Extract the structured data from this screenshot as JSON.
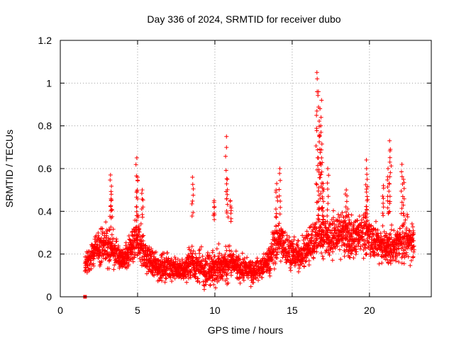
{
  "chart_data": {
    "type": "scatter",
    "title": "Day 336 of 2024, SRMTID for receiver dubo",
    "xlabel": "GPS time / hours",
    "ylabel": "SRMTID / TECUs",
    "xlim": [
      0,
      24
    ],
    "ylim": [
      0,
      1.2
    ],
    "x_ticks": [
      0,
      5,
      10,
      15,
      20
    ],
    "y_ticks": [
      0,
      0.2,
      0.4,
      0.6,
      0.8,
      1,
      1.2
    ],
    "x_tick_labels": [
      "0",
      "5",
      "10",
      "15",
      "20"
    ],
    "y_tick_labels": [
      "0",
      "0.2",
      "0.4",
      "0.6",
      "0.8",
      "1",
      "1.2"
    ],
    "grid": true,
    "marker": "plus",
    "color": "#ff0000",
    "series": [
      {
        "name": "SRMTID",
        "envelope_x": [
          1.6,
          2.0,
          2.5,
          3.0,
          3.5,
          4.0,
          4.5,
          5.0,
          5.5,
          6.0,
          6.5,
          7.0,
          7.5,
          8.0,
          8.5,
          9.0,
          9.5,
          10.0,
          10.5,
          11.0,
          11.5,
          12.0,
          12.5,
          13.0,
          13.5,
          14.0,
          14.5,
          15.0,
          15.5,
          16.0,
          16.5,
          17.0,
          17.5,
          18.0,
          18.5,
          19.0,
          19.5,
          20.0,
          20.5,
          21.0,
          21.5,
          22.0,
          22.5,
          22.9
        ],
        "envelope_low": [
          0.1,
          0.12,
          0.14,
          0.14,
          0.12,
          0.12,
          0.12,
          0.14,
          0.1,
          0.08,
          0.06,
          0.06,
          0.07,
          0.07,
          0.06,
          0.04,
          0.02,
          0.05,
          0.06,
          0.06,
          0.06,
          0.06,
          0.05,
          0.07,
          0.09,
          0.12,
          0.12,
          0.12,
          0.11,
          0.12,
          0.15,
          0.16,
          0.16,
          0.18,
          0.16,
          0.16,
          0.18,
          0.16,
          0.16,
          0.14,
          0.13,
          0.16,
          0.14,
          0.14
        ],
        "envelope_high": [
          0.2,
          0.26,
          0.32,
          0.35,
          0.3,
          0.22,
          0.3,
          0.4,
          0.28,
          0.22,
          0.2,
          0.22,
          0.18,
          0.17,
          0.26,
          0.22,
          0.2,
          0.24,
          0.22,
          0.26,
          0.2,
          0.19,
          0.18,
          0.18,
          0.24,
          0.4,
          0.34,
          0.28,
          0.26,
          0.34,
          0.4,
          0.42,
          0.38,
          0.4,
          0.42,
          0.38,
          0.42,
          0.4,
          0.34,
          0.32,
          0.32,
          0.34,
          0.4,
          0.36
        ],
        "peaks": [
          {
            "x": 3.25,
            "y": 0.57
          },
          {
            "x": 3.3,
            "y": 0.48
          },
          {
            "x": 4.95,
            "y": 0.65
          },
          {
            "x": 5.0,
            "y": 0.56
          },
          {
            "x": 5.3,
            "y": 0.5
          },
          {
            "x": 8.55,
            "y": 0.56
          },
          {
            "x": 10.75,
            "y": 0.75
          },
          {
            "x": 10.8,
            "y": 0.55
          },
          {
            "x": 14.2,
            "y": 0.6
          },
          {
            "x": 14.0,
            "y": 0.53
          },
          {
            "x": 16.6,
            "y": 1.05
          },
          {
            "x": 16.62,
            "y": 1.02
          },
          {
            "x": 16.7,
            "y": 0.96
          },
          {
            "x": 16.8,
            "y": 0.88
          },
          {
            "x": 16.9,
            "y": 0.92
          },
          {
            "x": 16.85,
            "y": 0.8
          },
          {
            "x": 16.75,
            "y": 0.75
          },
          {
            "x": 16.9,
            "y": 0.65
          },
          {
            "x": 17.3,
            "y": 0.6
          },
          {
            "x": 17.0,
            "y": 0.53
          },
          {
            "x": 19.8,
            "y": 0.64
          },
          {
            "x": 19.85,
            "y": 0.55
          },
          {
            "x": 21.3,
            "y": 0.73
          },
          {
            "x": 21.35,
            "y": 0.69
          },
          {
            "x": 21.2,
            "y": 0.6
          },
          {
            "x": 22.1,
            "y": 0.62
          },
          {
            "x": 22.2,
            "y": 0.55
          },
          {
            "x": 11.0,
            "y": 0.45
          },
          {
            "x": 9.95,
            "y": 0.45
          },
          {
            "x": 18.5,
            "y": 0.5
          },
          {
            "x": 20.9,
            "y": 0.52
          }
        ],
        "outlier": {
          "x": 1.6,
          "y": 0.0
        }
      }
    ]
  }
}
